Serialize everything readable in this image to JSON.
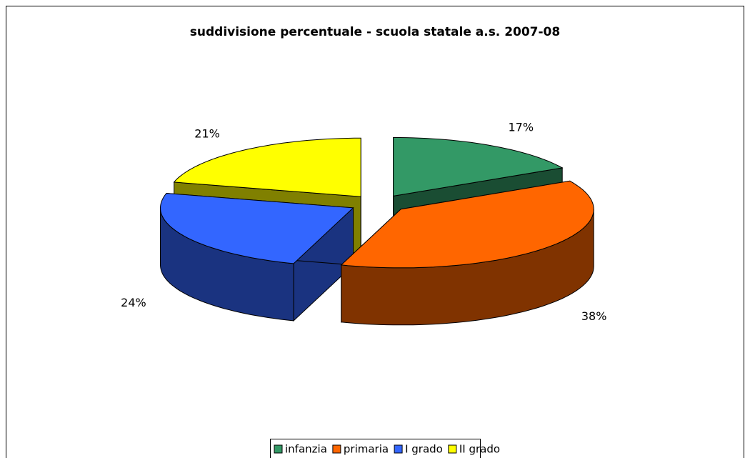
{
  "chart_data": {
    "type": "pie3d",
    "title": "suddivisione percentuale - scuola statale a.s. 2007-08",
    "categories": [
      "infanzia",
      "primaria",
      "I grado",
      "II grado"
    ],
    "values": [
      17,
      38,
      24,
      21
    ],
    "value_labels": [
      "17%",
      "38%",
      "24%",
      "21%"
    ],
    "colors": [
      "#339966",
      "#FF6600",
      "#3366FF",
      "#FFFF00"
    ],
    "side_colors": [
      "#1a4d33",
      "#803300",
      "#1a3380",
      "#808000"
    ],
    "legend": "bottom"
  }
}
